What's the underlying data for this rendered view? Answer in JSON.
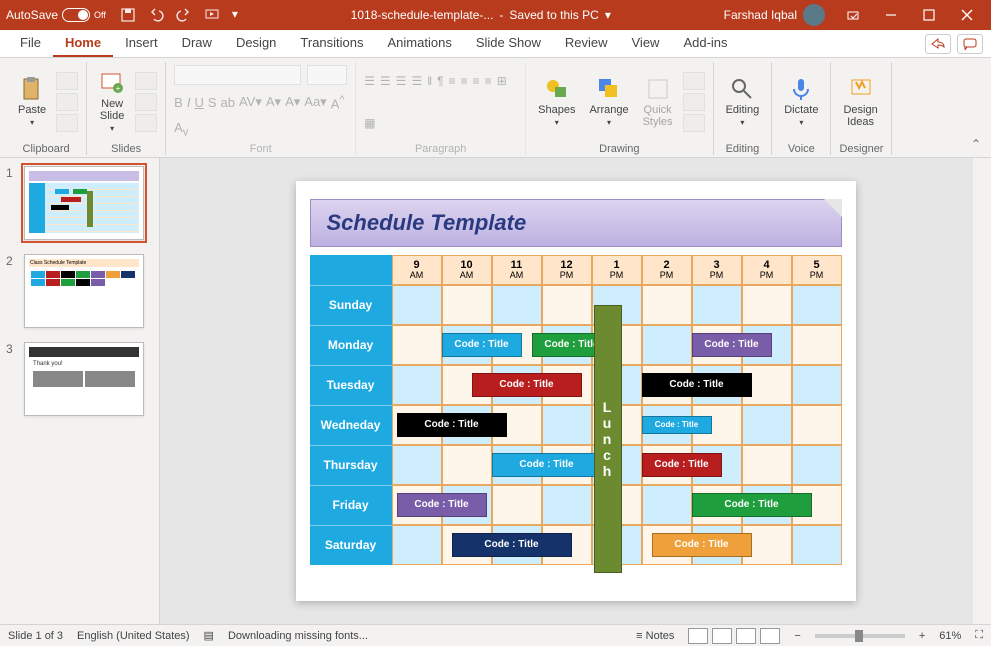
{
  "titlebar": {
    "autosave_label": "AutoSave",
    "autosave_state": "Off",
    "doc_name": "1018-schedule-template-...",
    "save_status": "Saved to this PC",
    "user_name": "Farshad Iqbal"
  },
  "tabs": [
    "File",
    "Home",
    "Insert",
    "Draw",
    "Design",
    "Transitions",
    "Animations",
    "Slide Show",
    "Review",
    "View",
    "Add-ins"
  ],
  "active_tab": "Home",
  "groups": {
    "clipboard": {
      "label": "Clipboard",
      "paste": "Paste"
    },
    "slides": {
      "label": "Slides",
      "new_slide": "New\nSlide"
    },
    "font": {
      "label": "Font"
    },
    "paragraph": {
      "label": "Paragraph"
    },
    "drawing": {
      "label": "Drawing",
      "shapes": "Shapes",
      "arrange": "Arrange",
      "quick": "Quick\nStyles"
    },
    "editing": {
      "label": "Editing",
      "btn": "Editing"
    },
    "voice": {
      "label": "Voice",
      "dictate": "Dictate"
    },
    "designer": {
      "label": "Designer",
      "ideas": "Design\nIdeas"
    }
  },
  "slide": {
    "title": "Schedule Template",
    "hours": [
      {
        "h": "9",
        "p": "AM"
      },
      {
        "h": "10",
        "p": "AM"
      },
      {
        "h": "11",
        "p": "AM"
      },
      {
        "h": "12",
        "p": "PM"
      },
      {
        "h": "1",
        "p": "PM"
      },
      {
        "h": "2",
        "p": "PM"
      },
      {
        "h": "3",
        "p": "PM"
      },
      {
        "h": "4",
        "p": "PM"
      },
      {
        "h": "5",
        "p": "PM"
      }
    ],
    "days": [
      "Sunday",
      "Monday",
      "Tuesday",
      "Wedneday",
      "Thursday",
      "Friday",
      "Saturday"
    ],
    "lunch_text": "Lunch",
    "blocks": {
      "mon1": {
        "text": "Code : Title",
        "bg": "#1fa9e1",
        "row": 1,
        "start": 1,
        "span": 1.6
      },
      "mon2": {
        "text": "Code : Title",
        "bg": "#1e9e3c",
        "row": 1,
        "start": 2.8,
        "span": 1.6
      },
      "mon3": {
        "text": "Code : Title",
        "bg": "#7a5da8",
        "row": 1,
        "start": 6,
        "span": 1.6
      },
      "tue1": {
        "text": "Code : Title",
        "bg": "#b81e1e",
        "row": 2,
        "start": 1.6,
        "span": 2.2
      },
      "tue2": {
        "text": "Code : Title",
        "bg": "#000000",
        "row": 2,
        "start": 5,
        "span": 2.2
      },
      "wed1": {
        "text": "Code : Title",
        "bg": "#000000",
        "row": 3,
        "start": 0.1,
        "span": 2.2
      },
      "wed2": {
        "text": "Code : Title",
        "bg": "#1fa9e1",
        "row": 3,
        "start": 5,
        "span": 1.4,
        "small": true
      },
      "thu1": {
        "text": "Code : Title",
        "bg": "#1fa9e1",
        "row": 4,
        "start": 2,
        "span": 2.2
      },
      "thu2": {
        "text": "Code : Title",
        "bg": "#b81e1e",
        "row": 4,
        "start": 5,
        "span": 1.6
      },
      "fri1": {
        "text": "Code : Title",
        "bg": "#7a5da8",
        "row": 5,
        "start": 0.1,
        "span": 1.8
      },
      "fri2": {
        "text": "Code : Title",
        "bg": "#1e9e3c",
        "row": 5,
        "start": 6,
        "span": 2.4
      },
      "sat1": {
        "text": "Code : Title",
        "bg": "#16326b",
        "row": 6,
        "start": 1.2,
        "span": 2.4
      },
      "sat2": {
        "text": "Code : Title",
        "bg": "#f0a03a",
        "row": 6,
        "start": 5.2,
        "span": 2.0
      }
    },
    "lunch": {
      "col": 4.05,
      "row_start": 1,
      "row_span": 6
    }
  },
  "status": {
    "slide_info": "Slide 1 of 3",
    "lang": "English (United States)",
    "download": "Downloading missing fonts...",
    "notes": "Notes",
    "zoom": "61%"
  },
  "thumbs": [
    1,
    2,
    3
  ]
}
